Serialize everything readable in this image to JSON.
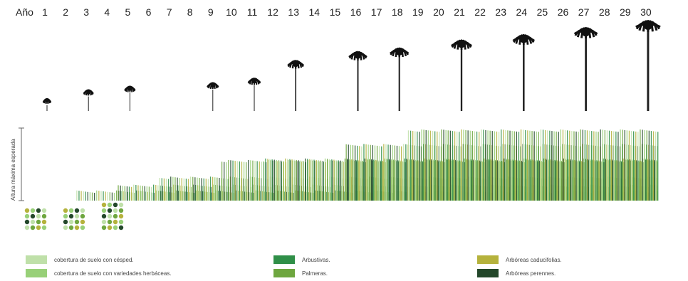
{
  "year_axis": {
    "label": "Año",
    "years": [
      "1",
      "2",
      "3",
      "4",
      "5",
      "6",
      "7",
      "8",
      "9",
      "10",
      "11",
      "12",
      "13",
      "14",
      "15",
      "16",
      "17",
      "18",
      "19",
      "20",
      "21",
      "22",
      "23",
      "24",
      "25",
      "26",
      "27",
      "28",
      "29",
      "30"
    ]
  },
  "y_axis_label": "Altura máxima esperada",
  "growth_steps": [
    {
      "from_year": 3,
      "to_year": 31,
      "level": 0.14
    },
    {
      "from_year": 5,
      "to_year": 31,
      "level": 0.22
    },
    {
      "from_year": 7,
      "to_year": 31,
      "level": 0.33
    },
    {
      "from_year": 10,
      "to_year": 31,
      "level": 0.56
    },
    {
      "from_year": 12,
      "to_year": 31,
      "level": 0.58
    },
    {
      "from_year": 16,
      "to_year": 31,
      "level": 0.78
    },
    {
      "from_year": 19,
      "to_year": 31,
      "level": 0.98
    }
  ],
  "palms": [
    {
      "year": 1,
      "height": 0.12
    },
    {
      "year": 3,
      "height": 0.22
    },
    {
      "year": 5,
      "height": 0.26
    },
    {
      "year": 9,
      "height": 0.3
    },
    {
      "year": 11,
      "height": 0.35
    },
    {
      "year": 13,
      "height": 0.55
    },
    {
      "year": 16,
      "height": 0.65
    },
    {
      "year": 18,
      "height": 0.69
    },
    {
      "year": 21,
      "height": 0.78
    },
    {
      "year": 24,
      "height": 0.84
    },
    {
      "year": 27,
      "height": 0.92
    },
    {
      "year": 30,
      "height": 1.0
    }
  ],
  "legend": [
    {
      "label": "cobertura de suelo con césped.",
      "color": "#bfe0a9"
    },
    {
      "label": "cobertura de suelo con variedades herbáceas.",
      "color": "#98d078"
    },
    {
      "label": "Arbustivas.",
      "color": "#2f8f48"
    },
    {
      "label": "Palmeras.",
      "color": "#6ea63f"
    },
    {
      "label": "Arbóreas caducifolias.",
      "color": "#b5b23c"
    },
    {
      "label": "Arbóreas perennes.",
      "color": "#23472a"
    }
  ]
}
